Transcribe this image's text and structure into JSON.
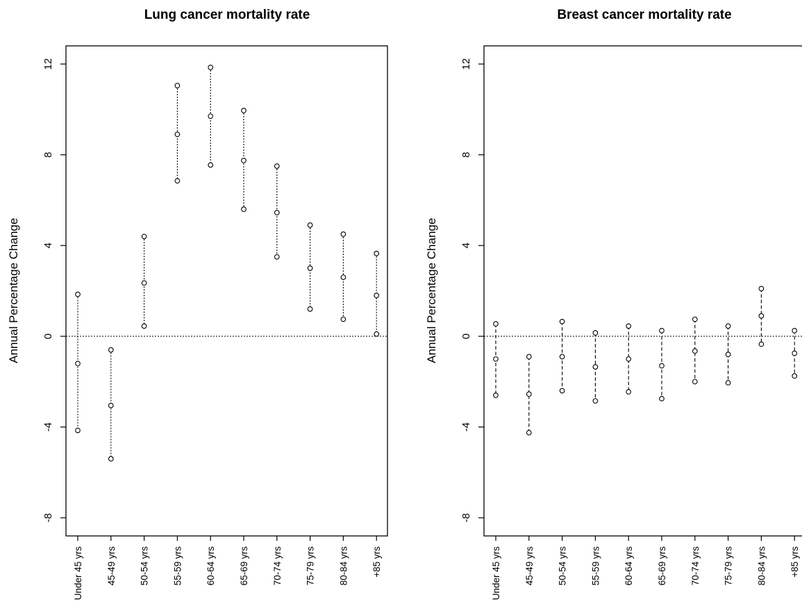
{
  "chart_data": [
    {
      "type": "scatter",
      "title": "Lung cancer mortality rate",
      "ylabel": "Annual Percentage Change",
      "xlabel": "",
      "ylim": [
        -8.8,
        12.8
      ],
      "yticks": [
        -8,
        -4,
        0,
        4,
        8,
        12
      ],
      "ytick_labels": [
        "-8",
        "-4",
        "0",
        "4",
        "8",
        "12"
      ],
      "reference_line": 0,
      "interval_style": "dotted",
      "categories": [
        "Under 45 yrs",
        "45-49 yrs",
        "50-54 yrs",
        "55-59 yrs",
        "60-64 yrs",
        "65-69 yrs",
        "70-74 yrs",
        "75-79 yrs",
        "80-84 yrs",
        "+85 yrs"
      ],
      "series": [
        {
          "values": [
            1.85,
            -0.6,
            4.4,
            11.05,
            11.85,
            9.95,
            7.5,
            4.9,
            4.5,
            3.65
          ]
        },
        {
          "values": [
            -1.2,
            -3.05,
            2.35,
            8.9,
            9.7,
            7.75,
            5.45,
            3.0,
            2.6,
            1.8
          ]
        },
        {
          "values": [
            -4.15,
            -5.4,
            0.45,
            6.85,
            7.55,
            5.6,
            3.5,
            1.2,
            0.75,
            0.1
          ]
        }
      ]
    },
    {
      "type": "scatter",
      "title": "Breast cancer mortality rate",
      "ylabel": "Annual Percentage Change",
      "xlabel": "",
      "ylim": [
        -8.8,
        12.8
      ],
      "yticks": [
        -8,
        -4,
        0,
        4,
        8,
        12
      ],
      "ytick_labels": [
        "-8",
        "-4",
        "0",
        "4",
        "8",
        "12"
      ],
      "reference_line": 0,
      "interval_style": "dashed",
      "categories": [
        "Under 45 yrs",
        "45-49 yrs",
        "50-54 yrs",
        "55-59 yrs",
        "60-64 yrs",
        "65-69 yrs",
        "70-74 yrs",
        "75-79 yrs",
        "80-84 yrs",
        "+85 yrs"
      ],
      "series": [
        {
          "values": [
            0.55,
            -0.9,
            0.65,
            0.15,
            0.45,
            0.25,
            0.75,
            0.45,
            2.1,
            0.25
          ]
        },
        {
          "values": [
            -1.0,
            -2.55,
            -0.9,
            -1.35,
            -1.0,
            -1.3,
            -0.65,
            -0.8,
            0.9,
            -0.75
          ]
        },
        {
          "values": [
            -2.6,
            -4.25,
            -2.4,
            -2.85,
            -2.45,
            -2.75,
            -2.0,
            -2.05,
            -0.35,
            -1.75
          ]
        }
      ]
    }
  ]
}
